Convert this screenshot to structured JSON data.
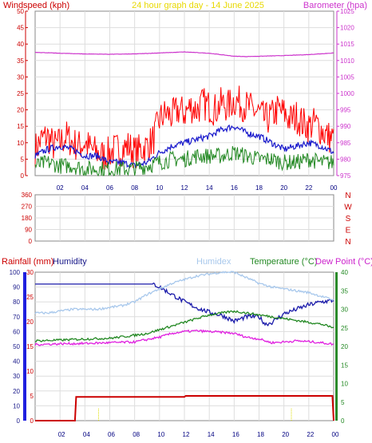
{
  "colors": {
    "wind": "#ff0000",
    "gust": "#1a1acc",
    "barometer": "#cc33cc",
    "direction": "#cc0000",
    "rain": "#cc0000",
    "humidity": "#1a1aaa",
    "humidex": "#a8c8ec",
    "temperature": "#228822",
    "dewpoint": "#e020e0",
    "rain_axis": "#1f1fdf",
    "temp_axis": "#2a8a2a",
    "hour_line": "#dddd00",
    "panel_border": "#888888",
    "grid": "#dddddd"
  },
  "chart_data": [
    {
      "type": "line",
      "title": "24 hour graph day - 14 June 2025",
      "title_color": "#e8d800",
      "left_label": "Windspeed (kph)",
      "right_label": "Barometer (hpa)",
      "x_ticks": [
        "02",
        "04",
        "06",
        "08",
        "10",
        "12",
        "14",
        "16",
        "18",
        "20",
        "22",
        "00"
      ],
      "y_left_ticks": [
        "0",
        "5",
        "10",
        "15",
        "20",
        "25",
        "30",
        "35",
        "40",
        "45",
        "50"
      ],
      "y_left_range": [
        0,
        50
      ],
      "y_right_ticks": [
        "975",
        "980",
        "985",
        "990",
        "995",
        "1000",
        "1005",
        "1010",
        "1015",
        "1020",
        "1025"
      ],
      "y_right_range": [
        975,
        1025
      ],
      "series": [
        {
          "key": "wind",
          "hours": [
            0,
            0.5,
            1,
            1.5,
            2,
            2.5,
            3,
            3.5,
            4,
            4.5,
            5,
            5.5,
            6,
            6.5,
            7,
            7.5,
            8,
            8.5,
            9,
            9.5,
            10,
            10.5,
            11,
            11.5,
            12,
            12.5,
            13,
            13.5,
            14,
            14.5,
            15,
            15.5,
            16,
            16.5,
            17,
            17.5,
            18,
            18.5,
            19,
            19.5,
            20,
            20.5,
            21,
            21.5,
            22,
            22.5,
            23,
            23.5,
            24
          ],
          "values": [
            8,
            11,
            12,
            9,
            10,
            12,
            10,
            9,
            10,
            8,
            7,
            6,
            7,
            8,
            8,
            9,
            7,
            8,
            9,
            11,
            17,
            19,
            18,
            20,
            19,
            21,
            20,
            22,
            21,
            20,
            22,
            21,
            23,
            22,
            21,
            20,
            19,
            17,
            18,
            20,
            19,
            17,
            18,
            16,
            15,
            16,
            14,
            12,
            11
          ],
          "noise": 8
        },
        {
          "key": "gust",
          "hours": [
            0,
            1,
            2,
            3,
            4,
            5,
            6,
            7,
            8,
            9,
            10,
            11,
            12,
            13,
            14,
            15,
            16,
            17,
            18,
            19,
            20,
            21,
            22,
            23,
            24
          ],
          "values": [
            6,
            8,
            9,
            8,
            6,
            6,
            4,
            4,
            3,
            4,
            7,
            9,
            10,
            11,
            12,
            14,
            15,
            13,
            12,
            10,
            8,
            9,
            10,
            9,
            7
          ],
          "noise": 2
        },
        {
          "key": "gust_low",
          "hours": [
            0,
            1,
            2,
            3,
            4,
            5,
            6,
            7,
            8,
            9,
            10,
            11,
            12,
            13,
            14,
            15,
            16,
            17,
            18,
            19,
            20,
            21,
            22,
            23,
            24
          ],
          "values": [
            3,
            4,
            3,
            3,
            2,
            2,
            2,
            2,
            2,
            3,
            4,
            5,
            5,
            6,
            6,
            6,
            7,
            6,
            5,
            5,
            4,
            4,
            5,
            4,
            4
          ],
          "noise": 5
        },
        {
          "key": "barometer",
          "hours": [
            0,
            2,
            4,
            6,
            8,
            10,
            12,
            14,
            16,
            17,
            18,
            20,
            22,
            24
          ],
          "values": [
            1012.5,
            1012.2,
            1012,
            1011.9,
            1012,
            1012.3,
            1012.6,
            1012.2,
            1011.3,
            1011.2,
            1011.3,
            1011.5,
            1011.8,
            1012.3
          ],
          "noise": 0.1
        }
      ]
    },
    {
      "type": "scatter",
      "title": "",
      "x_ticks": [],
      "y_left_ticks": [
        "360",
        "270",
        "180",
        "90",
        "0"
      ],
      "y_right_ticks": [
        "N",
        "W",
        "S",
        "E",
        "N"
      ],
      "y_range": [
        0,
        360
      ],
      "series": []
    },
    {
      "type": "line",
      "left_label_1": "Rainfall (mm)",
      "left_label_2": "Humidity",
      "right_labels": [
        "Humidex",
        "Temperature (°C)",
        "Dew Point (°C)"
      ],
      "x_ticks": [
        "02",
        "04",
        "06",
        "08",
        "10",
        "12",
        "14",
        "16",
        "18",
        "20",
        "22",
        "00"
      ],
      "y_humidity_ticks": [
        "0",
        "10",
        "20",
        "30",
        "40",
        "50",
        "60",
        "70",
        "80",
        "90",
        "100"
      ],
      "y_humidity_range": [
        0,
        100
      ],
      "y_rain_ticks": [
        "0",
        "5",
        "10",
        "15",
        "20",
        "25",
        "30"
      ],
      "y_rain_range": [
        0,
        30
      ],
      "y_temp_ticks": [
        "0",
        "5",
        "10",
        "15",
        "20",
        "25",
        "30",
        "35",
        "40"
      ],
      "y_temp_range": [
        0,
        40
      ],
      "series": [
        {
          "key": "humidity",
          "axis": "humidity",
          "hours": [
            0,
            1,
            2,
            3,
            4,
            5,
            6,
            7,
            8,
            9,
            9.5,
            10,
            11,
            12,
            13,
            14,
            15,
            16,
            17,
            18,
            18.5,
            19,
            20,
            21,
            22,
            23,
            24
          ],
          "values": [
            92,
            92,
            92,
            92,
            92,
            92,
            92,
            92,
            92,
            92,
            92,
            90,
            85,
            80,
            76,
            73,
            71,
            67,
            70,
            70,
            65,
            66,
            72,
            75,
            78,
            80,
            81
          ],
          "noise": 1.5
        },
        {
          "key": "humidex",
          "axis": "temp",
          "hours": [
            0,
            1,
            2,
            3,
            4,
            5,
            6,
            7,
            8,
            9,
            10,
            11,
            12,
            13,
            14,
            15,
            16,
            17,
            18,
            19,
            20,
            21,
            22,
            23,
            24
          ],
          "values": [
            29,
            29,
            29.5,
            30,
            30,
            30,
            30.5,
            31,
            32,
            34,
            35.5,
            37,
            38,
            39,
            39.5,
            40,
            40,
            38.5,
            37,
            36,
            35.5,
            35,
            34.5,
            33.5,
            32.5
          ],
          "noise": 0.3
        },
        {
          "key": "temperature",
          "axis": "temp",
          "hours": [
            0,
            2,
            4,
            6,
            8,
            9,
            10,
            11,
            12,
            13,
            14,
            15,
            16,
            17,
            18,
            19,
            20,
            21,
            22,
            23,
            24
          ],
          "values": [
            21.5,
            21.7,
            22,
            22.2,
            23,
            23.5,
            24.5,
            25.5,
            26.5,
            27.5,
            28.5,
            29,
            29.5,
            29,
            28.5,
            28,
            27.5,
            27,
            26.5,
            26,
            25
          ],
          "noise": 0.3
        },
        {
          "key": "dewpoint",
          "axis": "temp",
          "hours": [
            0,
            2,
            4,
            6,
            8,
            10,
            11,
            12,
            13,
            14,
            15,
            16,
            17,
            18,
            19,
            20,
            21,
            22,
            23,
            24
          ],
          "values": [
            20.5,
            20.7,
            20.8,
            21,
            21.2,
            22.5,
            23.5,
            24,
            24.2,
            24,
            23.8,
            23.5,
            22.5,
            22,
            21,
            21.2,
            21.5,
            21.3,
            21,
            20.6
          ],
          "noise": 0.3
        },
        {
          "key": "rain",
          "axis": "rain",
          "hours": [
            0,
            3.2,
            3.3,
            12,
            12.1,
            23.9,
            24
          ],
          "values": [
            0,
            0,
            4.8,
            4.8,
            5,
            5,
            0
          ],
          "noise": 0
        }
      ],
      "markers_hours": [
        5.1,
        20.6
      ]
    }
  ]
}
